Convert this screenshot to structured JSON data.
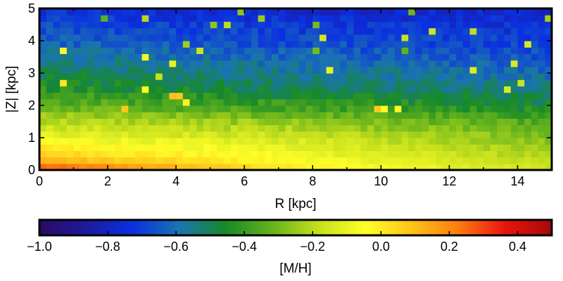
{
  "chart_data": {
    "type": "heatmap",
    "title": "",
    "xlabel": "R [kpc]",
    "ylabel": "|Z| [kpc]",
    "xlim": [
      0,
      15
    ],
    "ylim": [
      0,
      5
    ],
    "x_ticks": [
      {
        "value": 0,
        "label": "0"
      },
      {
        "value": 2,
        "label": "2"
      },
      {
        "value": 4,
        "label": "4"
      },
      {
        "value": 6,
        "label": "6"
      },
      {
        "value": 8,
        "label": "8"
      },
      {
        "value": 10,
        "label": "10"
      },
      {
        "value": 12,
        "label": "12"
      },
      {
        "value": 14,
        "label": "14"
      }
    ],
    "y_ticks": [
      {
        "value": 0,
        "label": "0"
      },
      {
        "value": 1,
        "label": "1"
      },
      {
        "value": 2,
        "label": "2"
      },
      {
        "value": 3,
        "label": "3"
      },
      {
        "value": 4,
        "label": "4"
      },
      {
        "value": 5,
        "label": "5"
      }
    ],
    "grid": false,
    "colorbar": {
      "label": "[M/H]",
      "orientation": "horizontal",
      "placement": "bottom",
      "range": [
        -1.0,
        0.5
      ],
      "ticks": [
        {
          "value": -1.0,
          "label": "−1.0"
        },
        {
          "value": -0.8,
          "label": "−0.8"
        },
        {
          "value": -0.6,
          "label": "−0.6"
        },
        {
          "value": -0.4,
          "label": "−0.4"
        },
        {
          "value": -0.2,
          "label": "−0.2"
        },
        {
          "value": 0.0,
          "label": "0.0"
        },
        {
          "value": 0.2,
          "label": "0.2"
        },
        {
          "value": 0.4,
          "label": "0.4"
        }
      ],
      "colormap": [
        "#2b0a63",
        "#1d1a9c",
        "#0b2fe0",
        "#1a74b0",
        "#178a28",
        "#66b31c",
        "#c6e01e",
        "#ffff29",
        "#ffc21a",
        "#ff7b10",
        "#e8140d",
        "#a50a0a"
      ]
    },
    "grid_resolution": {
      "nx": 75,
      "nz": 25
    },
    "metallicity_model": {
      "description": "[M/H] as a function of R and |Z|",
      "z_nodes": [
        0.0,
        0.1,
        0.3,
        0.6,
        1.0,
        1.5,
        2.0,
        2.5,
        3.0,
        3.5,
        4.0,
        4.5,
        5.0
      ],
      "mh_at_R0": [
        0.42,
        0.25,
        0.12,
        0.02,
        -0.08,
        -0.2,
        -0.32,
        -0.42,
        -0.5,
        -0.57,
        -0.63,
        -0.68,
        -0.74
      ],
      "mh_at_R8": [
        0.02,
        -0.03,
        -0.06,
        -0.1,
        -0.16,
        -0.26,
        -0.4,
        -0.5,
        -0.56,
        -0.62,
        -0.68,
        -0.72,
        -0.78
      ],
      "mh_at_R15": [
        -0.15,
        -0.17,
        -0.2,
        -0.24,
        -0.28,
        -0.36,
        -0.46,
        -0.54,
        -0.6,
        -0.66,
        -0.7,
        -0.74,
        -0.78
      ]
    }
  }
}
